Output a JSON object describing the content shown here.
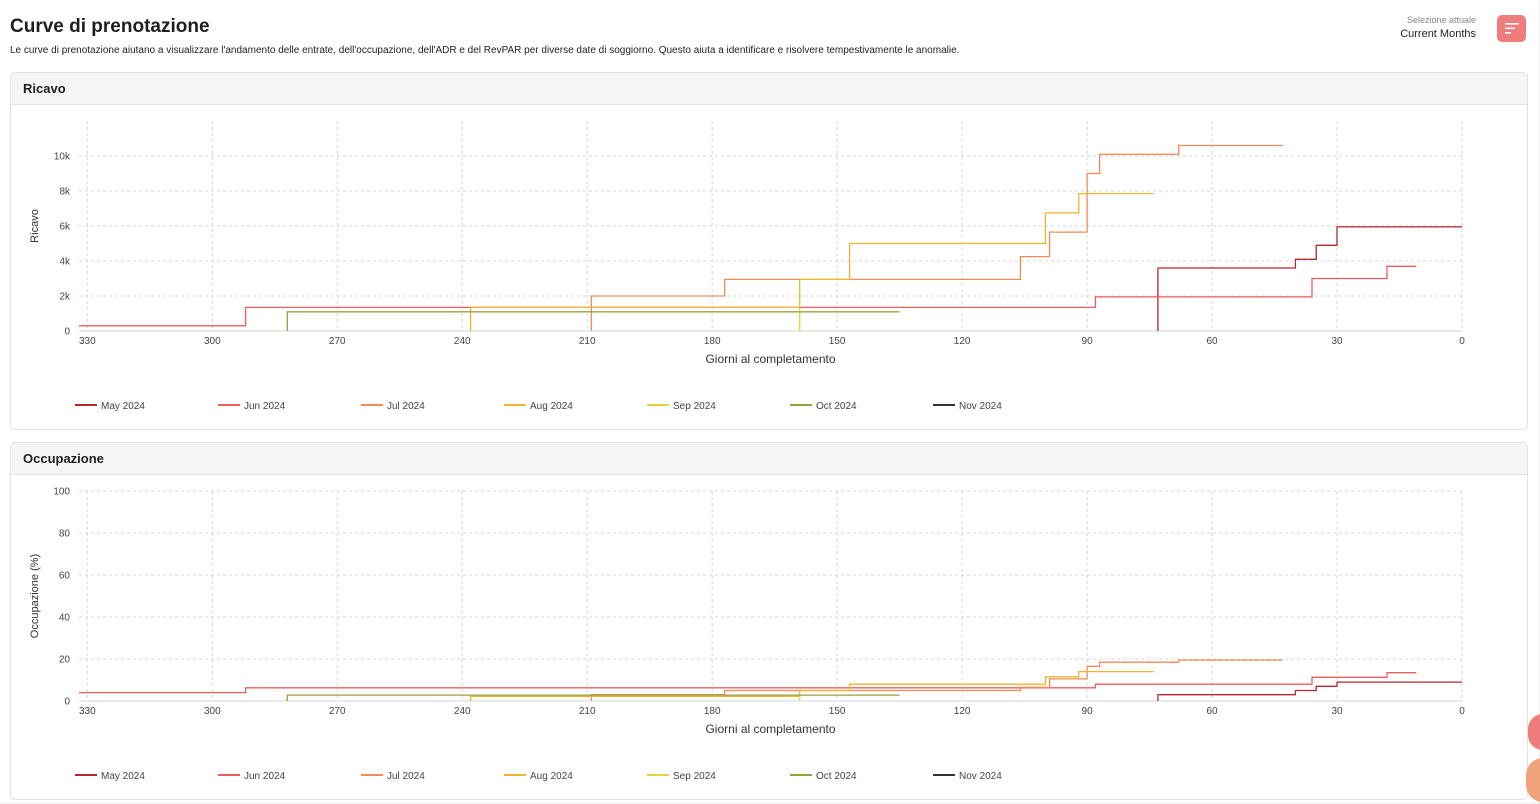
{
  "header": {
    "title": "Curve di prenotazione",
    "subtitle": "Le curve di prenotazione aiutano a visualizzare l'andamento delle entrate, dell'occupazione, dell'ADR e del RevPAR per diverse date di soggiorno. Questo aiuta a identificare e risolvere tempestivamente le anomalie.",
    "selection_label": "Selezione attuale",
    "selection_value": "Current Months",
    "filter_icon": "filter-lines-icon"
  },
  "colors": {
    "accent": "#f07d7d",
    "May 2024": "#b3272d",
    "Jun 2024": "#ee5d5d",
    "Jul 2024": "#f58a52",
    "Aug 2024": "#f3b32b",
    "Sep 2024": "#e6d13a",
    "Oct 2024": "#9aa03a",
    "Nov 2024": "#333333"
  },
  "chart_data": [
    {
      "type": "line",
      "title": "Ricavo",
      "xlabel": "Giorni al completamento",
      "ylabel": "Ricavo",
      "xlim": [
        332,
        0
      ],
      "ylim": [
        0,
        12000
      ],
      "xticks": [
        330,
        300,
        270,
        240,
        210,
        180,
        150,
        120,
        90,
        60,
        30,
        0
      ],
      "yticks": [
        0,
        2000,
        4000,
        6000,
        8000,
        10000
      ],
      "ytick_labels": [
        "0",
        "2k",
        "4k",
        "6k",
        "8k",
        "10k"
      ],
      "grid": true,
      "legend_position": "bottom",
      "series": [
        {
          "name": "May 2024",
          "points": [
            [
              73,
              0
            ],
            [
              73,
              3600
            ],
            [
              40,
              3600
            ],
            [
              40,
              4100
            ],
            [
              35,
              4100
            ],
            [
              35,
              4900
            ],
            [
              30,
              4900
            ],
            [
              30,
              5950
            ],
            [
              0,
              5950
            ]
          ]
        },
        {
          "name": "Jun 2024",
          "points": [
            [
              332,
              300
            ],
            [
              292,
              300
            ],
            [
              292,
              1350
            ],
            [
              88,
              1350
            ],
            [
              88,
              1950
            ],
            [
              36,
              1950
            ],
            [
              36,
              3000
            ],
            [
              18,
              3000
            ],
            [
              18,
              3700
            ],
            [
              11,
              3700
            ]
          ]
        },
        {
          "name": "Jul 2024",
          "points": [
            [
              209,
              0
            ],
            [
              209,
              2000
            ],
            [
              177,
              2000
            ],
            [
              177,
              2950
            ],
            [
              106,
              2950
            ],
            [
              106,
              4250
            ],
            [
              99,
              4250
            ],
            [
              99,
              5650
            ],
            [
              90,
              5650
            ],
            [
              90,
              9000
            ],
            [
              87,
              9000
            ],
            [
              87,
              10100
            ],
            [
              68,
              10100
            ],
            [
              68,
              10600
            ],
            [
              43,
              10600
            ]
          ]
        },
        {
          "name": "Aug 2024",
          "points": [
            [
              238,
              0
            ],
            [
              238,
              1350
            ],
            [
              159,
              1350
            ],
            [
              159,
              2950
            ],
            [
              147,
              2950
            ],
            [
              147,
              5000
            ],
            [
              100,
              5000
            ],
            [
              100,
              6750
            ],
            [
              92,
              6750
            ],
            [
              92,
              7850
            ],
            [
              74,
              7850
            ]
          ]
        },
        {
          "name": "Sep 2024",
          "points": [
            [
              159,
              0
            ],
            [
              159,
              1350
            ]
          ]
        },
        {
          "name": "Oct 2024",
          "points": [
            [
              282,
              0
            ],
            [
              282,
              1100
            ],
            [
              135,
              1100
            ]
          ]
        },
        {
          "name": "Nov 2024",
          "points": []
        }
      ]
    },
    {
      "type": "line",
      "title": "Occupazione",
      "xlabel": "Giorni al completamento",
      "ylabel": "Occupazione (%)",
      "xlim": [
        332,
        0
      ],
      "ylim": [
        0,
        100
      ],
      "xticks": [
        330,
        300,
        270,
        240,
        210,
        180,
        150,
        120,
        90,
        60,
        30,
        0
      ],
      "yticks": [
        0,
        20,
        40,
        60,
        80,
        100
      ],
      "ytick_labels": [
        "0",
        "20",
        "40",
        "60",
        "80",
        "100"
      ],
      "grid": true,
      "legend_position": "bottom",
      "series": [
        {
          "name": "May 2024",
          "points": [
            [
              73,
              0
            ],
            [
              73,
              3
            ],
            [
              40,
              3
            ],
            [
              40,
              5
            ],
            [
              35,
              5
            ],
            [
              35,
              7
            ],
            [
              30,
              7
            ],
            [
              30,
              9
            ],
            [
              0,
              9
            ]
          ]
        },
        {
          "name": "Jun 2024",
          "points": [
            [
              332,
              4
            ],
            [
              292,
              4
            ],
            [
              292,
              6.3
            ],
            [
              88,
              6.3
            ],
            [
              88,
              8
            ],
            [
              36,
              8
            ],
            [
              36,
              11.3
            ],
            [
              18,
              11.3
            ],
            [
              18,
              13.5
            ],
            [
              11,
              13.5
            ]
          ]
        },
        {
          "name": "Jul 2024",
          "points": [
            [
              209,
              0
            ],
            [
              209,
              3
            ],
            [
              177,
              3
            ],
            [
              177,
              5
            ],
            [
              106,
              5
            ],
            [
              106,
              6.5
            ],
            [
              99,
              6.5
            ],
            [
              99,
              10.5
            ],
            [
              90,
              10.5
            ],
            [
              90,
              16.5
            ],
            [
              87,
              16.5
            ],
            [
              87,
              18.5
            ],
            [
              68,
              18.5
            ],
            [
              68,
              19.5
            ],
            [
              43,
              19.5
            ]
          ]
        },
        {
          "name": "Aug 2024",
          "points": [
            [
              238,
              0
            ],
            [
              238,
              2.2
            ],
            [
              159,
              2.2
            ],
            [
              159,
              5
            ],
            [
              147,
              5
            ],
            [
              147,
              8
            ],
            [
              100,
              8
            ],
            [
              100,
              11.5
            ],
            [
              92,
              11.5
            ],
            [
              92,
              14
            ],
            [
              74,
              14
            ]
          ]
        },
        {
          "name": "Sep 2024",
          "points": [
            [
              159,
              0
            ],
            [
              159,
              2.2
            ]
          ]
        },
        {
          "name": "Oct 2024",
          "points": [
            [
              282,
              0
            ],
            [
              282,
              2.8
            ],
            [
              135,
              2.8
            ]
          ]
        },
        {
          "name": "Nov 2024",
          "points": []
        }
      ]
    }
  ]
}
